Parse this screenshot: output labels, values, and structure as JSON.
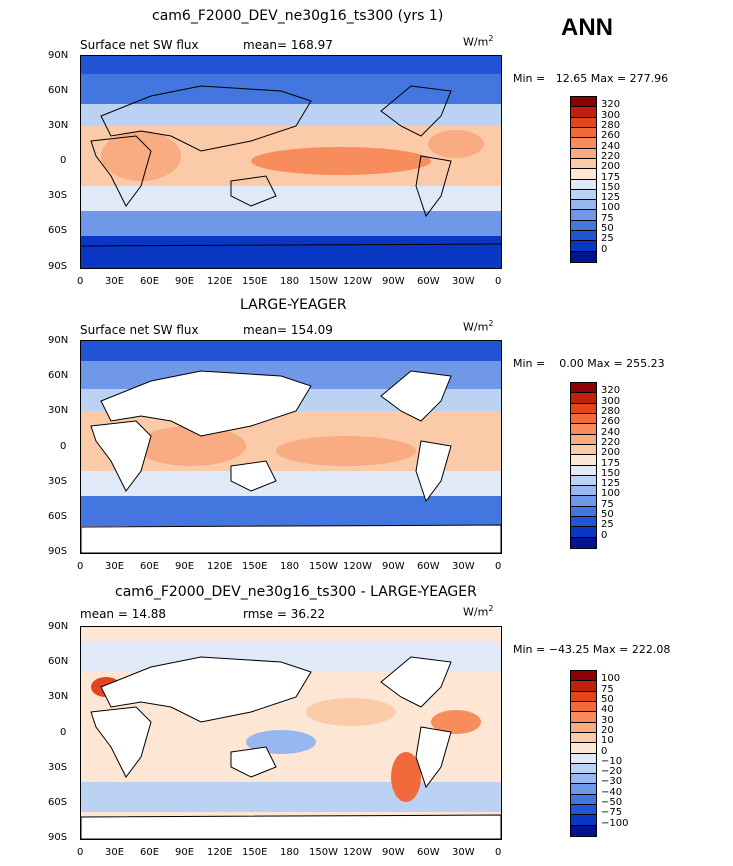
{
  "season": "ANN",
  "units_prefix": "W/m",
  "units_exp": "2",
  "lon_ticks": [
    "0",
    "30E",
    "60E",
    "90E",
    "120E",
    "150E",
    "180",
    "150W",
    "120W",
    "90W",
    "60W",
    "30W",
    "0"
  ],
  "lat_ticks": [
    "90N",
    "60N",
    "30N",
    "0",
    "30S",
    "60S",
    "90S"
  ],
  "panels": [
    {
      "title": "cam6_F2000_DEV_ne30g16_ts300 (yrs 1)",
      "left_label": "Surface net SW flux",
      "mid_label": "mean= 168.97",
      "minmax": "Min =   12.65 Max = 277.96",
      "colorbar_labels": [
        "320",
        "300",
        "280",
        "260",
        "240",
        "220",
        "200",
        "175",
        "150",
        "125",
        "100",
        "75",
        "50",
        "25",
        "0"
      ]
    },
    {
      "title": "LARGE-YEAGER",
      "left_label": "Surface net SW flux",
      "mid_label": "mean= 154.09",
      "minmax": "Min =    0.00 Max = 255.23",
      "colorbar_labels": [
        "320",
        "300",
        "280",
        "260",
        "240",
        "220",
        "200",
        "175",
        "150",
        "125",
        "100",
        "75",
        "50",
        "25",
        "0"
      ]
    },
    {
      "title": "cam6_F2000_DEV_ne30g16_ts300 - LARGE-YEAGER",
      "left_label": "mean =   14.88",
      "mid_label": "rmse =   36.22",
      "minmax": "Min = −43.25 Max = 222.08",
      "colorbar_labels": [
        "100",
        "75",
        "50",
        "40",
        "30",
        "20",
        "10",
        "0",
        "−10",
        "−20",
        "−30",
        "−40",
        "−50",
        "−75",
        "−100"
      ]
    }
  ],
  "colors": {
    "abs_scale": [
      "#8b0000",
      "#c0200c",
      "#e3461c",
      "#f26a3b",
      "#f78c5c",
      "#f9ab82",
      "#fbcaa8",
      "#fde6d4",
      "#dfe9f8",
      "#bcd2f3",
      "#98b7ee",
      "#6f98e8",
      "#4476e0",
      "#2155d6",
      "#0a38c5",
      "#00158f"
    ],
    "diff_scale": [
      "#8b0000",
      "#c0200c",
      "#e3461c",
      "#f26a3b",
      "#f78c5c",
      "#f9ab82",
      "#fbcaa8",
      "#fde6d4",
      "#dfe9f8",
      "#bcd2f3",
      "#98b7ee",
      "#6f98e8",
      "#4476e0",
      "#2155d6",
      "#0a38c5",
      "#00158f"
    ],
    "land_mask": "#ffffff",
    "coast": "#000000"
  }
}
